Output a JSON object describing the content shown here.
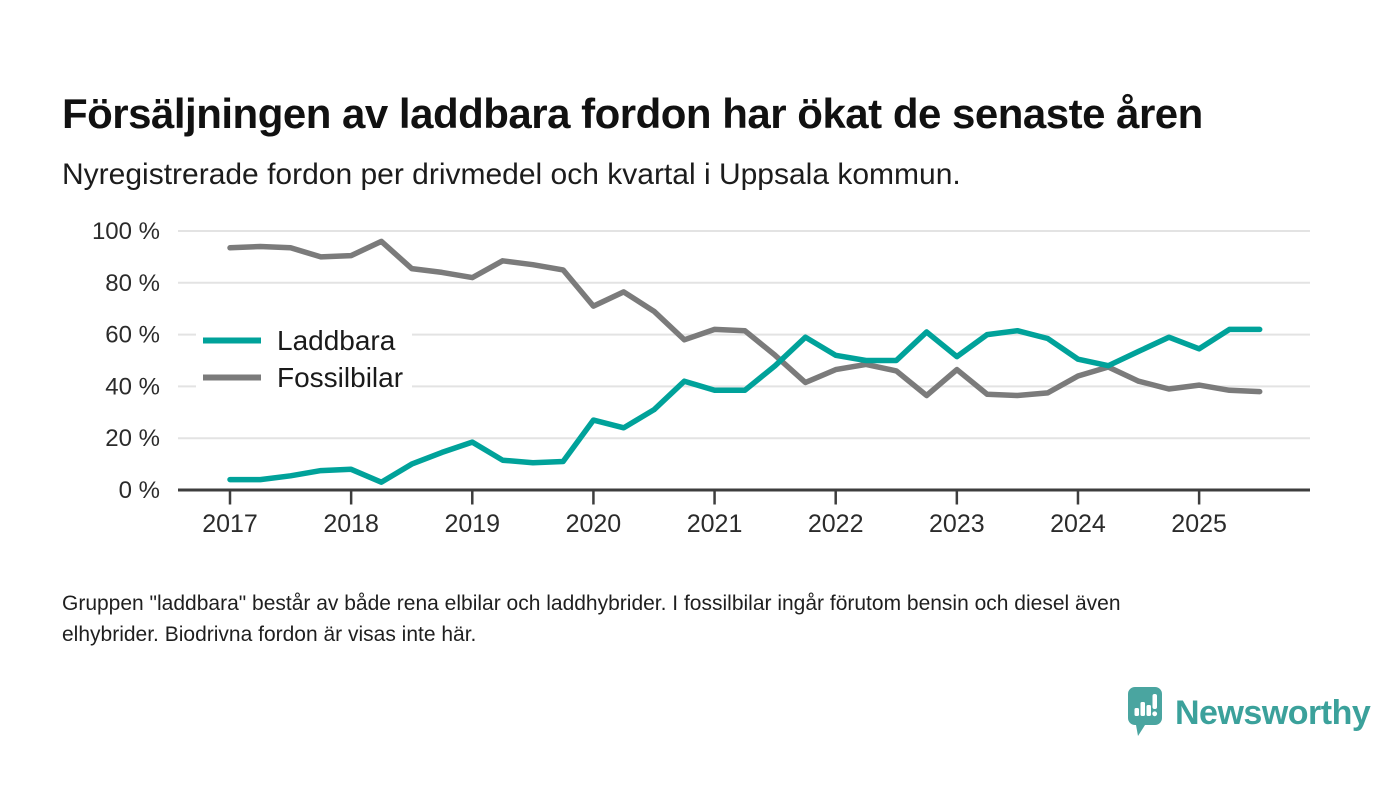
{
  "title": "Försäljningen av laddbara fordon har ökat de senaste åren",
  "subtitle": "Nyregistrerade fordon per drivmedel och kvartal i Uppsala kommun.",
  "footer_lines": [
    "Gruppen \"laddbara\" består av både rena elbilar och laddhybrider. I fossilbilar ingår förutom bensin och diesel även",
    "elhybrider. Biodrivna fordon är visas inte här."
  ],
  "logo": {
    "text": "Newsworthy"
  },
  "colors": {
    "laddbara": "#00a29a",
    "fossilbilar": "#7b7b7b",
    "gridline": "#e3e3e3",
    "axis": "#3d3d3d",
    "tick_label": "#2b2b2b",
    "logo_teal": "#4aa5a0",
    "logo_text_teal": "#3ba19b"
  },
  "chart_data": {
    "type": "line",
    "title": "",
    "xlabel": "",
    "ylabel": "",
    "ylim": [
      0,
      100
    ],
    "grid": "horizontal",
    "legend_position": "inside-left",
    "ytick_labels": [
      "0 %",
      "20 %",
      "40 %",
      "60 %",
      "80 %",
      "100 %"
    ],
    "yticks": [
      0,
      20,
      40,
      60,
      80,
      100
    ],
    "xtick_labels": [
      "2017",
      "2018",
      "2019",
      "2020",
      "2021",
      "2022",
      "2023",
      "2024",
      "2025"
    ],
    "quarters": [
      "2017 Q1",
      "2017 Q2",
      "2017 Q3",
      "2017 Q4",
      "2018 Q1",
      "2018 Q2",
      "2018 Q3",
      "2018 Q4",
      "2019 Q1",
      "2019 Q2",
      "2019 Q3",
      "2019 Q4",
      "2020 Q1",
      "2020 Q2",
      "2020 Q3",
      "2020 Q4",
      "2021 Q1",
      "2021 Q2",
      "2021 Q3",
      "2021 Q4",
      "2022 Q1",
      "2022 Q2",
      "2022 Q3",
      "2022 Q4",
      "2023 Q1",
      "2023 Q2",
      "2023 Q3",
      "2023 Q4",
      "2024 Q1",
      "2024 Q2",
      "2024 Q3",
      "2024 Q4",
      "2025 Q1",
      "2025 Q2",
      "2025 Q3"
    ],
    "series": [
      {
        "name": "Laddbara",
        "color": "#00a29a",
        "values": [
          4,
          4,
          5.5,
          7.5,
          8,
          3,
          10,
          14.5,
          18.5,
          11.5,
          10.5,
          11,
          27,
          24,
          31,
          42,
          38.5,
          38.5,
          48,
          59,
          52,
          50,
          50,
          61,
          51.5,
          60,
          61.5,
          58.5,
          50.5,
          48,
          53.5,
          59,
          54.5,
          62,
          62
        ]
      },
      {
        "name": "Fossilbilar",
        "color": "#7b7b7b",
        "values": [
          93.5,
          94,
          93.5,
          90,
          90.5,
          96,
          85.5,
          84,
          82,
          88.5,
          87,
          85,
          71,
          76.5,
          69,
          58,
          62,
          61.5,
          52,
          41.5,
          46.5,
          48.5,
          46,
          36.5,
          46.5,
          37,
          36.5,
          37.5,
          44,
          47.5,
          42,
          39,
          40.5,
          38.5,
          38
        ]
      }
    ]
  }
}
